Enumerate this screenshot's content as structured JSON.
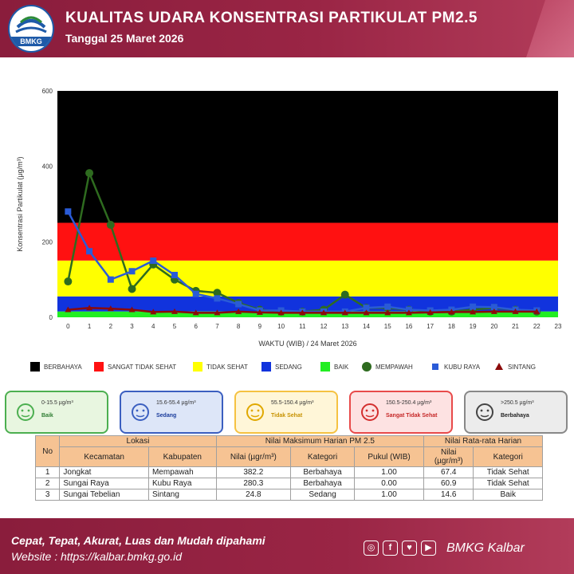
{
  "header": {
    "title": "KUALITAS UDARA KONSENTRASI PARTIKULAT PM2.5",
    "subtitle": "Tanggal 25 Maret 2026",
    "logo_text": "BMKG"
  },
  "chart_data": {
    "type": "line",
    "xlabel": "WAKTU (WIB) / 24 Maret 2026",
    "ylabel": "Konsentrasi Partikulat (μg/m³)",
    "x": [
      0,
      1,
      2,
      3,
      4,
      5,
      6,
      7,
      8,
      9,
      10,
      11,
      12,
      13,
      14,
      15,
      16,
      17,
      18,
      19,
      20,
      21,
      22
    ],
    "xlim": [
      -0.5,
      23
    ],
    "xticks": [
      "0",
      "1",
      "2",
      "3",
      "4",
      "5",
      "6",
      "7",
      "8",
      "9",
      "10",
      "11",
      "12",
      "13",
      "14",
      "15",
      "16",
      "17",
      "18",
      "19",
      "20",
      "21",
      "22",
      "23"
    ],
    "ylim": [
      0,
      600
    ],
    "yticks": [
      "0",
      "200",
      "400",
      "600"
    ],
    "bands": [
      {
        "name": "BAIK",
        "from": 0,
        "to": 15.5,
        "color": "#22ee22"
      },
      {
        "name": "SEDANG",
        "from": 15.5,
        "to": 55.4,
        "color": "#1133dd"
      },
      {
        "name": "TIDAK SEHAT",
        "from": 55.4,
        "to": 150.4,
        "color": "#ffff00"
      },
      {
        "name": "SANGAT TIDAK SEHAT",
        "from": 150.4,
        "to": 250.4,
        "color": "#ff1111"
      },
      {
        "name": "BERBAHAYA",
        "from": 250.4,
        "to": 600,
        "color": "#000000"
      }
    ],
    "series": [
      {
        "name": "MEMPAWAH",
        "color": "#2e6b1f",
        "marker": "circle",
        "values": [
          95,
          382.2,
          245,
          75,
          140,
          100,
          70,
          65,
          38,
          20,
          15,
          15,
          20,
          60,
          25,
          25,
          20,
          15,
          15,
          20,
          25,
          20,
          15
        ]
      },
      {
        "name": "KUBU RAYA",
        "color": "#2a5bd7",
        "marker": "square",
        "values": [
          280.3,
          175,
          100,
          122,
          150,
          112,
          62,
          50,
          35,
          18,
          18,
          15,
          15,
          15,
          25,
          28,
          20,
          18,
          20,
          28,
          27,
          20,
          18
        ]
      },
      {
        "name": "SINTANG",
        "color": "#8b0a0a",
        "marker": "triangle",
        "values": [
          20,
          24.8,
          23,
          20,
          14,
          15,
          12,
          12,
          15,
          13,
          12,
          12,
          12,
          12,
          12,
          12,
          12,
          13,
          14,
          14,
          15,
          15,
          15
        ]
      }
    ],
    "legend": [
      {
        "label": "BERBAHAYA",
        "color": "#000000",
        "shape": "square"
      },
      {
        "label": "SANGAT TIDAK SEHAT",
        "color": "#ff1111",
        "shape": "square"
      },
      {
        "label": "TIDAK SEHAT",
        "color": "#ffff00",
        "shape": "square"
      },
      {
        "label": "SEDANG",
        "color": "#1133dd",
        "shape": "square"
      },
      {
        "label": "BAIK",
        "color": "#22ee22",
        "shape": "square"
      },
      {
        "label": "MEMPAWAH",
        "color": "#2e6b1f",
        "shape": "circle"
      },
      {
        "label": "KUBU RAYA",
        "color": "#2a5bd7",
        "shape": "smallsquare"
      },
      {
        "label": "SINTANG",
        "color": "#8b0a0a",
        "shape": "triangle"
      }
    ],
    "legend_position": "bottom"
  },
  "categories": [
    {
      "range": "0-15.5 µg/m³",
      "label": "Baik",
      "bg": "#e8f6e0",
      "border": "#4caf50",
      "text": "#2e7d32",
      "face": "#4caf50"
    },
    {
      "range": "15.6-55.4 µg/m³",
      "label": "Sedang",
      "bg": "#dde6f8",
      "border": "#3b5fc0",
      "text": "#1a3c9c",
      "face": "#3b5fc0"
    },
    {
      "range": "55.5-150.4 µg/m³",
      "label": "Tidak Sehat",
      "bg": "#fff6d8",
      "border": "#f5c242",
      "text": "#c79200",
      "face": "#e0a800"
    },
    {
      "range": "150.5-250.4 µg/m³",
      "label": "Sangat Tidak Sehat",
      "bg": "#fde2e2",
      "border": "#e84a4a",
      "text": "#c62828",
      "face": "#d32f2f"
    },
    {
      "range": ">250.5 µg/m³",
      "label": "Berbahaya",
      "bg": "#ececec",
      "border": "#888888",
      "text": "#222222",
      "face": "#444444"
    }
  ],
  "table": {
    "h_no": "No",
    "h_lokasi": "Lokasi",
    "h_maks": "Nilai Maksimum Harian PM 2.5",
    "h_rata": "Nilai Rata-rata Harian",
    "h_kecamatan": "Kecamatan",
    "h_kabupaten": "Kabupaten",
    "h_nilai": "Nilai (µgr/m³)",
    "h_kategori": "Kategori",
    "h_pukul": "Pukul (WIB)",
    "h_nilai2a": "Nilai",
    "h_nilai2b": "(µgr/m³)",
    "h_kategori2": "Kategori",
    "rows": [
      {
        "no": "1",
        "kecamatan": "Jongkat",
        "kabupaten": "Mempawah",
        "nilai": "382.2",
        "kategori": "Berbahaya",
        "pukul": "1.00",
        "rata": "67.4",
        "kategori_rata": "Tidak Sehat"
      },
      {
        "no": "2",
        "kecamatan": "Sungai Raya",
        "kabupaten": "Kubu Raya",
        "nilai": "280.3",
        "kategori": "Berbahaya",
        "pukul": "0.00",
        "rata": "60.9",
        "kategori_rata": "Tidak Sehat"
      },
      {
        "no": "3",
        "kecamatan": "Sungai Tebelian",
        "kabupaten": "Sintang",
        "nilai": "24.8",
        "kategori": "Sedang",
        "pukul": "1.00",
        "rata": "14.6",
        "kategori_rata": "Baik"
      }
    ]
  },
  "footer": {
    "tagline": "Cepat, Tepat, Akurat, Luas dan Mudah dipahami",
    "website": "Website : https://kalbar.bmkg.go.id",
    "brand": "BMKG Kalbar",
    "social": [
      {
        "icon": "instagram-icon",
        "glyph": "◎"
      },
      {
        "icon": "facebook-icon",
        "glyph": "f"
      },
      {
        "icon": "twitter-icon",
        "glyph": "♥"
      },
      {
        "icon": "youtube-icon",
        "glyph": "▶"
      }
    ]
  }
}
